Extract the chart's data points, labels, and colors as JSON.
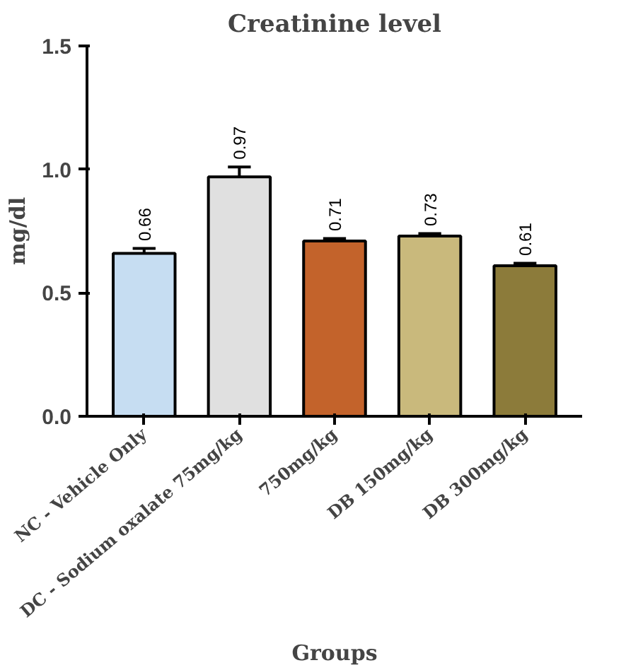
{
  "chart_data": {
    "type": "bar",
    "title": "Creatinine level",
    "xlabel": "Groups",
    "ylabel": "mg/dl",
    "categories": [
      "NC - Vehicle Only",
      "DC - Sodium oxalate 75mg/kg",
      "750mg/kg",
      "DB 150mg/kg",
      "DB 300mg/kg"
    ],
    "values": [
      0.66,
      0.97,
      0.71,
      0.73,
      0.61
    ],
    "colors": [
      "#c6ddf2",
      "#e0e0e0",
      "#c3632b",
      "#c9b97c",
      "#8c7b3a"
    ],
    "errors": [
      0.02,
      0.04,
      0.01,
      0.01,
      0.01
    ],
    "ylim": [
      0,
      1.5
    ],
    "yticks": [
      {
        "value": 0,
        "label": "0.0"
      },
      {
        "value": 0.5,
        "label": "0.5"
      },
      {
        "value": 1,
        "label": "1.0"
      },
      {
        "value": 1.5,
        "label": "1.5"
      }
    ],
    "data_labels": true,
    "grid": false
  }
}
